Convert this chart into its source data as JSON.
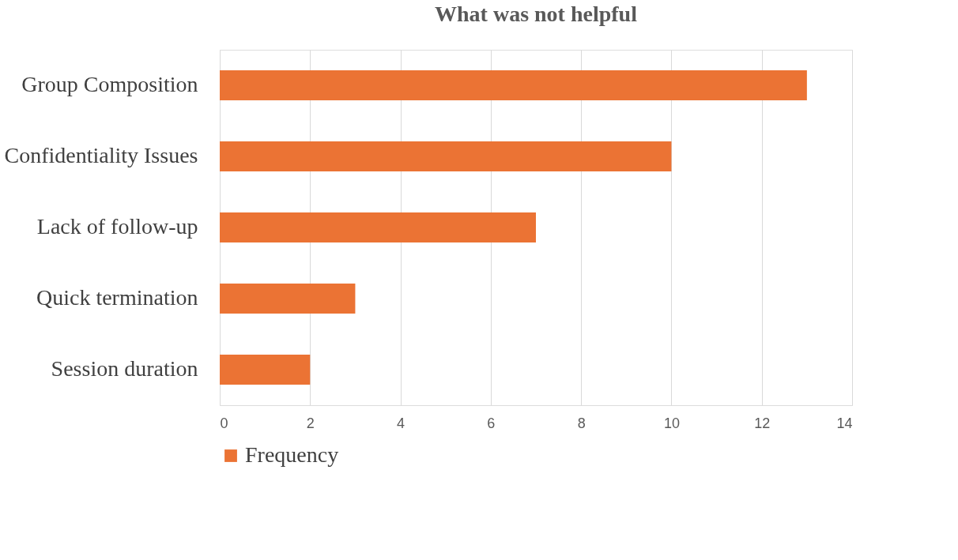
{
  "chart_data": {
    "type": "bar",
    "orientation": "horizontal",
    "title": "What was not helpful",
    "categories": [
      "Group Composition",
      "Confidentiality Issues",
      "Lack of follow-up",
      "Quick termination",
      "Session duration"
    ],
    "series": [
      {
        "name": "Frequency",
        "color": "#eb7334",
        "values": [
          13,
          10,
          7,
          3,
          2
        ]
      }
    ],
    "xlim": [
      0,
      14
    ],
    "xticks": [
      0,
      2,
      4,
      6,
      8,
      10,
      12,
      14
    ],
    "grid": "x",
    "legend": "bottom"
  }
}
